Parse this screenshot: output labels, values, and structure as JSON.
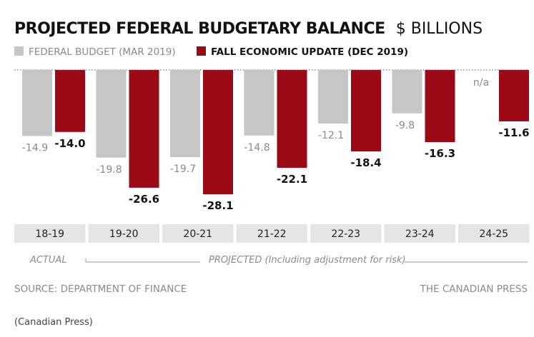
{
  "colors": {
    "federal_budget": "#c6c6c6",
    "fall_update": "#9b0a14",
    "category_band": "#e5e5e5",
    "muted_text": "#8a8a8a"
  },
  "chart_data": {
    "type": "bar",
    "title": "PROJECTED FEDERAL BUDGETARY BALANCE",
    "unit": "$ BILLIONS",
    "categories": [
      "18-19",
      "19-20",
      "20-21",
      "21-22",
      "22-23",
      "23-24",
      "24-25"
    ],
    "series": [
      {
        "name": "FEDERAL BUDGET (MAR 2019)",
        "values": [
          -14.9,
          -19.8,
          -19.7,
          -14.8,
          -12.1,
          -9.8,
          null
        ],
        "labels": [
          "-14.9",
          "-19.8",
          "-19.7",
          "-14.8",
          "-12.1",
          "-9.8",
          "n/a"
        ]
      },
      {
        "name": "FALL ECONOMIC UPDATE (DEC 2019)",
        "values": [
          -14.0,
          -26.6,
          -28.1,
          -22.1,
          -18.4,
          -16.3,
          -11.6
        ],
        "labels": [
          "-14.0",
          "-26.6",
          "-28.1",
          "-22.1",
          "-18.4",
          "-16.3",
          "-11.6"
        ]
      }
    ],
    "ylim": [
      -30,
      0
    ],
    "legend_position": "top-left",
    "grid": false,
    "periods": {
      "actual": "ACTUAL",
      "projected": "PROJECTED (Including adjustment for risk)"
    }
  },
  "footer": {
    "source": "SOURCE: DEPARTMENT OF FINANCE",
    "credit": "THE CANADIAN PRESS"
  },
  "caption": "(Canadian Press)"
}
